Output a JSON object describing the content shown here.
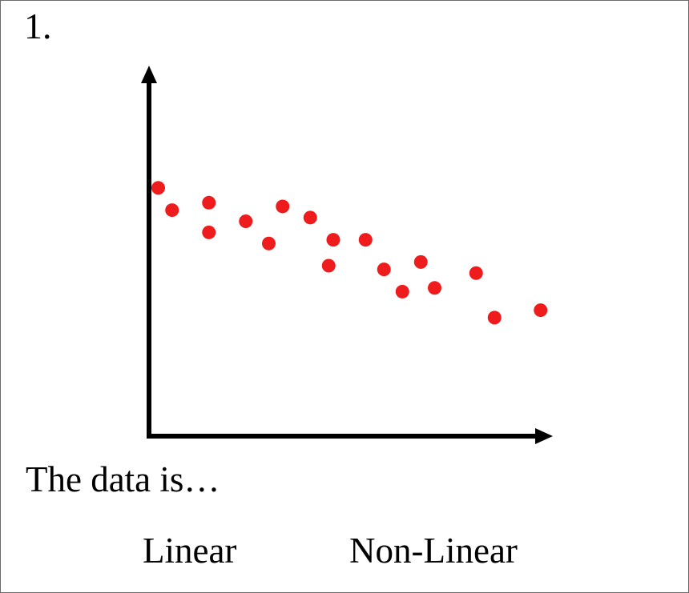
{
  "question": {
    "number": "1.",
    "prompt": "The data is…",
    "options": [
      "Linear",
      "Non-Linear"
    ]
  },
  "colors": {
    "points": "#ee1c1c",
    "axes": "#000000"
  },
  "chart_data": {
    "type": "scatter",
    "title": "",
    "xlabel": "",
    "ylabel": "",
    "xlim": [
      0,
      100
    ],
    "ylim": [
      0,
      100
    ],
    "grid": false,
    "axis_arrows": true,
    "series": [
      {
        "points": [
          {
            "x": 10,
            "y": 67
          },
          {
            "x": 13,
            "y": 61
          },
          {
            "x": 21,
            "y": 63
          },
          {
            "x": 21,
            "y": 55
          },
          {
            "x": 29,
            "y": 58
          },
          {
            "x": 34,
            "y": 52
          },
          {
            "x": 37,
            "y": 62
          },
          {
            "x": 43,
            "y": 59
          },
          {
            "x": 48,
            "y": 53
          },
          {
            "x": 47,
            "y": 46
          },
          {
            "x": 55,
            "y": 53
          },
          {
            "x": 59,
            "y": 45
          },
          {
            "x": 63,
            "y": 39
          },
          {
            "x": 67,
            "y": 47
          },
          {
            "x": 70,
            "y": 40
          },
          {
            "x": 79,
            "y": 44
          },
          {
            "x": 83,
            "y": 32
          },
          {
            "x": 93,
            "y": 34
          }
        ]
      }
    ]
  }
}
